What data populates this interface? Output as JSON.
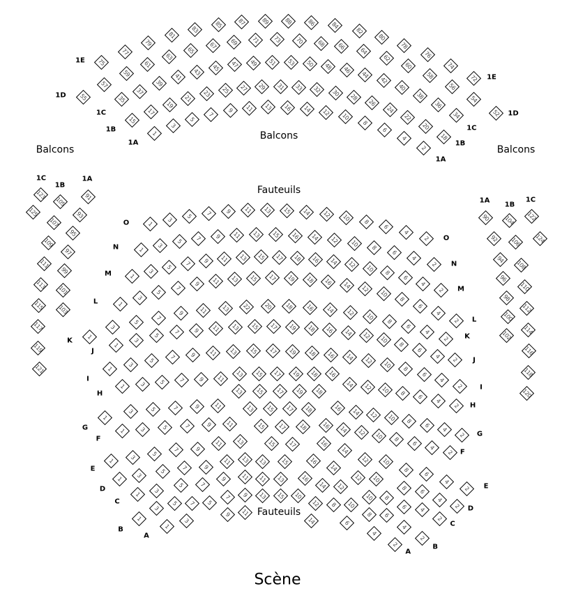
{
  "titles": {
    "balcony": "Balcons",
    "orchestra": "Fauteuils",
    "stage": "Scène"
  },
  "rows": [
    {
      "section": "balcony",
      "row": "1A",
      "seats": [
        "1",
        "3",
        "5",
        "7",
        "9",
        "11",
        "13",
        "16",
        "14",
        "12",
        "10",
        "8",
        "6",
        "4",
        "2"
      ]
    },
    {
      "section": "balcony",
      "row": "1B",
      "seats": [
        "15",
        "17",
        "19",
        "21",
        "23",
        "25",
        "27",
        "29",
        "31",
        "33",
        "32",
        "30",
        "28",
        "26",
        "24",
        "22",
        "20",
        "18"
      ]
    },
    {
      "section": "balcony",
      "row": "1C",
      "seats": [
        "35",
        "37",
        "39",
        "41",
        "43",
        "45",
        "47",
        "49",
        "51",
        "53",
        "50",
        "48",
        "46",
        "44",
        "42",
        "40",
        "38",
        "36",
        "34"
      ]
    },
    {
      "section": "balcony",
      "row": "1D",
      "seats": [
        "55",
        "57",
        "59",
        "61",
        "63",
        "65",
        "67",
        "69",
        "71",
        "73",
        "70",
        "68",
        "66",
        "64",
        "62",
        "60",
        "58",
        "56",
        "54",
        "52"
      ]
    },
    {
      "section": "balcony",
      "row": "1E",
      "seats": [
        "75",
        "77",
        "79",
        "81",
        "83",
        "85",
        "87",
        "89",
        "88",
        "86",
        "84",
        "82",
        "80",
        "78",
        "76",
        "74",
        "72"
      ]
    },
    {
      "section": "balcony-left",
      "row": "1A",
      "seats": [
        "91",
        "93",
        "95",
        "97",
        "99",
        "101",
        "103"
      ]
    },
    {
      "section": "balcony-left",
      "row": "1B",
      "seats": [
        "105",
        "107",
        "109",
        "111",
        "113",
        "115",
        "117",
        "119",
        "121"
      ]
    },
    {
      "section": "balcony-left",
      "row": "1C",
      "seats": [
        "123",
        "125"
      ]
    },
    {
      "section": "balcony-right",
      "row": "1A",
      "seats": [
        "90",
        "92",
        "94",
        "96",
        "98",
        "100",
        "102"
      ]
    },
    {
      "section": "balcony-right",
      "row": "1B",
      "seats": [
        "104",
        "106",
        "108",
        "110",
        "112",
        "114",
        "116",
        "118",
        "120"
      ]
    },
    {
      "section": "balcony-right",
      "row": "1C",
      "seats": [
        "122",
        "124"
      ]
    },
    {
      "section": "orchestra",
      "row": "O",
      "seats": [
        "1",
        "3",
        "5",
        "7",
        "9",
        "11",
        "13",
        "15",
        "14",
        "12",
        "10",
        "8",
        "6",
        "4",
        "2"
      ]
    },
    {
      "section": "orchestra",
      "row": "N",
      "seats": [
        "1",
        "3",
        "5",
        "7",
        "9",
        "11",
        "13",
        "15",
        "16",
        "14",
        "12",
        "10",
        "8",
        "6",
        "4",
        "2"
      ]
    },
    {
      "section": "orchestra",
      "row": "M",
      "seats": [
        "1",
        "3",
        "5",
        "7",
        "9",
        "11",
        "13",
        "15",
        "17",
        "18",
        "16",
        "14",
        "12",
        "10",
        "8",
        "6",
        "4",
        "2"
      ]
    },
    {
      "section": "orchestra",
      "row": "L",
      "seats": [
        "1",
        "3",
        "5",
        "7",
        "9",
        "11",
        "13",
        "15",
        "17",
        "19",
        "18",
        "16",
        "14",
        "12",
        "10",
        "8",
        "6",
        "4",
        "2"
      ]
    },
    {
      "section": "orchestra",
      "row": "K",
      "seats": [
        "1",
        "3",
        "5",
        "7",
        "9",
        "11",
        "13",
        "22",
        "20",
        "18",
        "16",
        "14",
        "12",
        "10",
        "8",
        "6",
        "4",
        "2"
      ]
    },
    {
      "section": "orchestra",
      "row": "J",
      "seats": [
        "1",
        "3",
        "5",
        "7",
        "9",
        "11",
        "13",
        "15",
        "17",
        "19",
        "18",
        "16",
        "14",
        "12",
        "10",
        "8",
        "6",
        "4",
        "2"
      ]
    },
    {
      "section": "orchestra",
      "row": "I",
      "seats": [
        "1",
        "3",
        "5",
        "7",
        "9",
        "11",
        "13",
        "15",
        "17",
        "19",
        "18",
        "16",
        "14",
        "12",
        "10",
        "8",
        "6",
        "4",
        "2"
      ]
    },
    {
      "section": "orchestra",
      "row": "H",
      "seats": [
        "1",
        "3",
        "5",
        "7",
        "9",
        "11",
        "13",
        "15",
        "17",
        "19",
        "18",
        "16",
        "14",
        "12",
        "10",
        "8",
        "6",
        "4",
        "2"
      ]
    },
    {
      "section": "orchestra",
      "row": "G",
      "seats": [
        "1",
        "3",
        "5",
        "7",
        "9",
        "11",
        "13",
        "15",
        "17",
        "19",
        "18",
        "16",
        "14",
        "12",
        "10",
        "8",
        "6",
        "4",
        "2"
      ]
    },
    {
      "section": "orchestra",
      "row": "F",
      "seats": [
        "1",
        "3",
        "5",
        "7",
        "9",
        "11",
        "13",
        "15",
        "17",
        "18",
        "16",
        "14",
        "12",
        "10",
        "8",
        "6",
        "4",
        "2"
      ]
    },
    {
      "section": "orchestra",
      "row": "E",
      "seats": [
        "1",
        "3",
        "5",
        "7",
        "9",
        "11",
        "13",
        "15",
        "17",
        "18",
        "16",
        "14",
        "12",
        "10",
        "8",
        "6",
        "4",
        "2"
      ]
    },
    {
      "section": "orchestra",
      "row": "D",
      "seats": [
        "1",
        "3",
        "5",
        "7",
        "9",
        "11",
        "13",
        "15",
        "17",
        "16",
        "14",
        "12",
        "10",
        "8",
        "6",
        "4",
        "2"
      ]
    },
    {
      "section": "orchestra",
      "row": "C",
      "seats": [
        "1",
        "3",
        "5",
        "7",
        "9",
        "11",
        "13",
        "15",
        "16",
        "14",
        "12",
        "10",
        "8",
        "6",
        "4",
        "2"
      ]
    },
    {
      "section": "orchestra",
      "row": "B",
      "seats": [
        "1",
        "3",
        "5",
        "7",
        "9",
        "11",
        "13",
        "15",
        "14",
        "12",
        "10",
        "8",
        "6",
        "4",
        "2"
      ]
    },
    {
      "section": "orchestra",
      "row": "A",
      "seats": [
        "1",
        "3",
        "5",
        "7",
        "9",
        "11",
        "13",
        "10",
        "8",
        "6",
        "4",
        "2"
      ]
    }
  ]
}
